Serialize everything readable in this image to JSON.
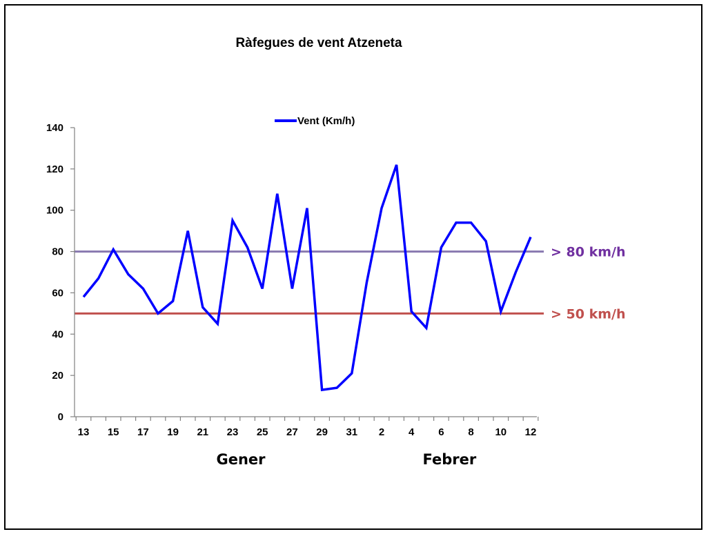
{
  "chart_data": {
    "type": "line",
    "title": "Ràfegues de vent Atzeneta",
    "xlabel": "",
    "ylabel": "",
    "ylim": [
      0,
      140
    ],
    "yticks": [
      0,
      20,
      40,
      60,
      80,
      100,
      120,
      140
    ],
    "x": [
      "13",
      "14",
      "15",
      "16",
      "17",
      "18",
      "19",
      "20",
      "21",
      "22",
      "23",
      "24",
      "25",
      "26",
      "27",
      "28",
      "29",
      "30",
      "31",
      "1",
      "2",
      "3",
      "4",
      "5",
      "6",
      "7",
      "8",
      "9",
      "10",
      "11",
      "12"
    ],
    "xtick_labels": [
      "13",
      "15",
      "17",
      "19",
      "21",
      "23",
      "25",
      "27",
      "29",
      "31",
      "2",
      "4",
      "6",
      "8",
      "10",
      "12"
    ],
    "month_labels": [
      {
        "label": "Gener",
        "at": "23"
      },
      {
        "label": "Febrer",
        "at": "6"
      }
    ],
    "series": [
      {
        "name": "Vent (Km/h)",
        "color": "#0000ff",
        "values": [
          58,
          67,
          81,
          69,
          62,
          50,
          56,
          90,
          53,
          45,
          95,
          82,
          62,
          108,
          62,
          101,
          13,
          14,
          21,
          65,
          101,
          122,
          51,
          43,
          82,
          94,
          94,
          85,
          51,
          70,
          87
        ]
      }
    ],
    "reference_lines": [
      {
        "value": 80,
        "label": "> 80 km/h",
        "color": "#7030a0",
        "line_color": "#8878b0"
      },
      {
        "value": 50,
        "label": "> 50 km/h",
        "color": "#c0504d",
        "line_color": "#c0504d"
      }
    ],
    "legend": {
      "position": "top-center"
    },
    "grid": false
  }
}
